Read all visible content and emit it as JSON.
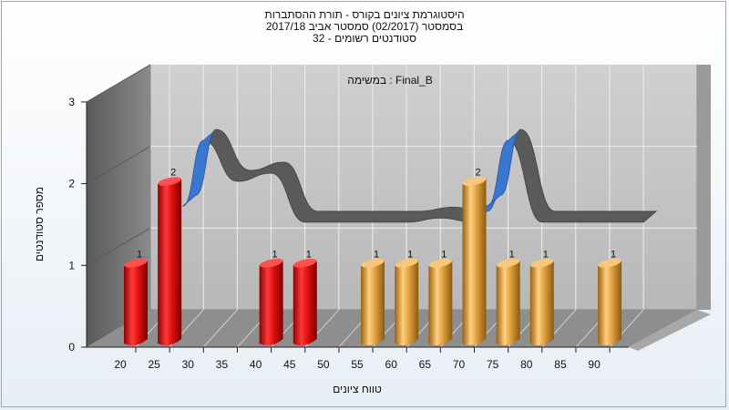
{
  "chart_data": {
    "type": "bar",
    "title_lines": [
      "היסטוגרמת ציונים בקורס - תורת ההסתברות",
      "בסמסטר  (02/2017)  סמסטר אביב 2017/18",
      "סטודנטים רשומים - 32"
    ],
    "annotation": "במשימה : Final_B",
    "xlabel": "טווח ציונים",
    "ylabel": "מספר סטודנטים",
    "x_ticks": [
      "20",
      "25",
      "30",
      "35",
      "40",
      "45",
      "50",
      "55",
      "60",
      "65",
      "70",
      "75",
      "80",
      "85",
      "90"
    ],
    "y_ticks": [
      "0",
      "1",
      "2",
      "3"
    ],
    "ylim": [
      0,
      3
    ],
    "grid": true,
    "bars": [
      {
        "x": 20,
        "value": 1,
        "label": "1"
      },
      {
        "x": 25,
        "value": 2,
        "label": "2"
      },
      {
        "x": 40,
        "value": 1,
        "label": "1"
      },
      {
        "x": 45,
        "value": 1,
        "label": "1"
      },
      {
        "x": 55,
        "value": 1,
        "label": "1"
      },
      {
        "x": 60,
        "value": 1,
        "label": "1"
      },
      {
        "x": 65,
        "value": 1,
        "label": "1"
      },
      {
        "x": 70,
        "value": 2,
        "label": "2"
      },
      {
        "x": 75,
        "value": 1,
        "label": "1"
      },
      {
        "x": 80,
        "value": 1,
        "label": "1"
      },
      {
        "x": 90,
        "value": 1,
        "label": "1"
      }
    ],
    "curve": [
      {
        "x": 27,
        "value": 1.45
      },
      {
        "x": 30,
        "value": 2.25
      },
      {
        "x": 35,
        "value": 1.75
      },
      {
        "x": 40,
        "value": 1.85
      },
      {
        "x": 45,
        "value": 1.25
      },
      {
        "x": 50,
        "value": 1.25
      },
      {
        "x": 55,
        "value": 1.25
      },
      {
        "x": 60,
        "value": 1.25
      },
      {
        "x": 65,
        "value": 1.3
      },
      {
        "x": 70,
        "value": 1.25
      },
      {
        "x": 72,
        "value": 1.45
      },
      {
        "x": 75,
        "value": 2.25
      },
      {
        "x": 80,
        "value": 1.25
      },
      {
        "x": 85,
        "value": 1.25
      },
      {
        "x": 90,
        "value": 1.25
      },
      {
        "x": 95,
        "value": 1.25
      }
    ],
    "colors": {
      "low_bar": "#d81818",
      "high_bar": "#e0a040",
      "curve_front": "#3a78d0",
      "curve_back": "#5a5a5a",
      "wall": "#6e6e6e",
      "plot_bg": "#c8c8c8",
      "floor": "#8a8a8a"
    }
  }
}
